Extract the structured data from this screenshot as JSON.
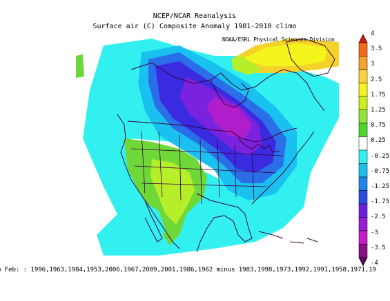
{
  "header": {
    "title": "NCEP/NCAR Reanalysis",
    "subtitle": "Surface air (C) Composite Anomaly 1981-2010 climo",
    "credit": "NOAA/ESRL Physical Sciences Division"
  },
  "legend": {
    "labels": [
      "4",
      "3.5",
      "3",
      "2.5",
      "1.75",
      "1.25",
      "0.75",
      "0.25",
      "-0.25",
      "-0.75",
      "-1.25",
      "-1.75",
      "-2.5",
      "-3",
      "-3.5",
      "-4"
    ],
    "colors": [
      "#d7190f",
      "#f06a18",
      "#f8a02a",
      "#f9d23c",
      "#f5f51e",
      "#c8f01a",
      "#8ee636",
      "#4cd82a",
      "#ffffff",
      "#33f0f0",
      "#1ac0f0",
      "#1a86ea",
      "#2a4ee0",
      "#6a22de",
      "#9a1ed8",
      "#c41ac8",
      "#8a0e86",
      "#5a085a"
    ]
  },
  "footer": {
    "text": "o Feb: : 1996,1963,1984,1953,2006,1967,2009,2001,1986,1962 minus 1983,1998,1973,1992,1991,1958,1971,19"
  },
  "colors": {
    "coastline": "#3a003a",
    "cyan": "#33f0f0",
    "light_blue": "#1ac0f0",
    "blue": "#2a6ee8",
    "indigo": "#3a2ae0",
    "purple": "#7a22de",
    "magenta": "#b01ecc",
    "green": "#6ed838",
    "yellow_green": "#b6ee2a",
    "yellow": "#f5f51e",
    "orange_yellow": "#f5d22a"
  }
}
